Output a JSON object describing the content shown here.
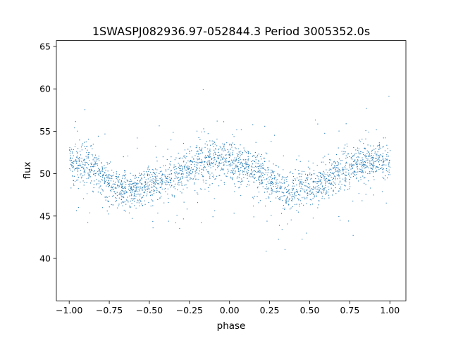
{
  "chart_data": {
    "type": "scatter",
    "title": "1SWASPJ082936.97-052844.3 Period 3005352.0s",
    "xlabel": "phase",
    "ylabel": "flux",
    "xlim": [
      -1.08,
      1.1
    ],
    "ylim": [
      35,
      65.7
    ],
    "xticks": [
      -1.0,
      -0.75,
      -0.5,
      -0.25,
      0.0,
      0.25,
      0.5,
      0.75,
      1.0
    ],
    "xtick_labels": [
      "−1.00",
      "−0.75",
      "−0.50",
      "−0.25",
      "0.00",
      "0.25",
      "0.50",
      "0.75",
      "1.00"
    ],
    "yticks": [
      40,
      45,
      50,
      55,
      60,
      65
    ],
    "ytick_labels": [
      "40",
      "45",
      "50",
      "55",
      "60",
      "65"
    ],
    "grid": false,
    "marker_color": "#1f77b4",
    "series": [
      {
        "name": "",
        "description_curve": {
          "phase": [
            0.0,
            0.1,
            0.2,
            0.3,
            0.4,
            0.5,
            0.6,
            0.7,
            0.8,
            0.9,
            1.0
          ],
          "flux_median": [
            51.5,
            51.0,
            50.0,
            48.3,
            48.0,
            48.7,
            49.3,
            50.3,
            51.3,
            51.7,
            51.5
          ]
        },
        "x_range": [
          -1.0,
          1.0
        ],
        "y_range": [
          36.5,
          64.2
        ]
      }
    ]
  }
}
